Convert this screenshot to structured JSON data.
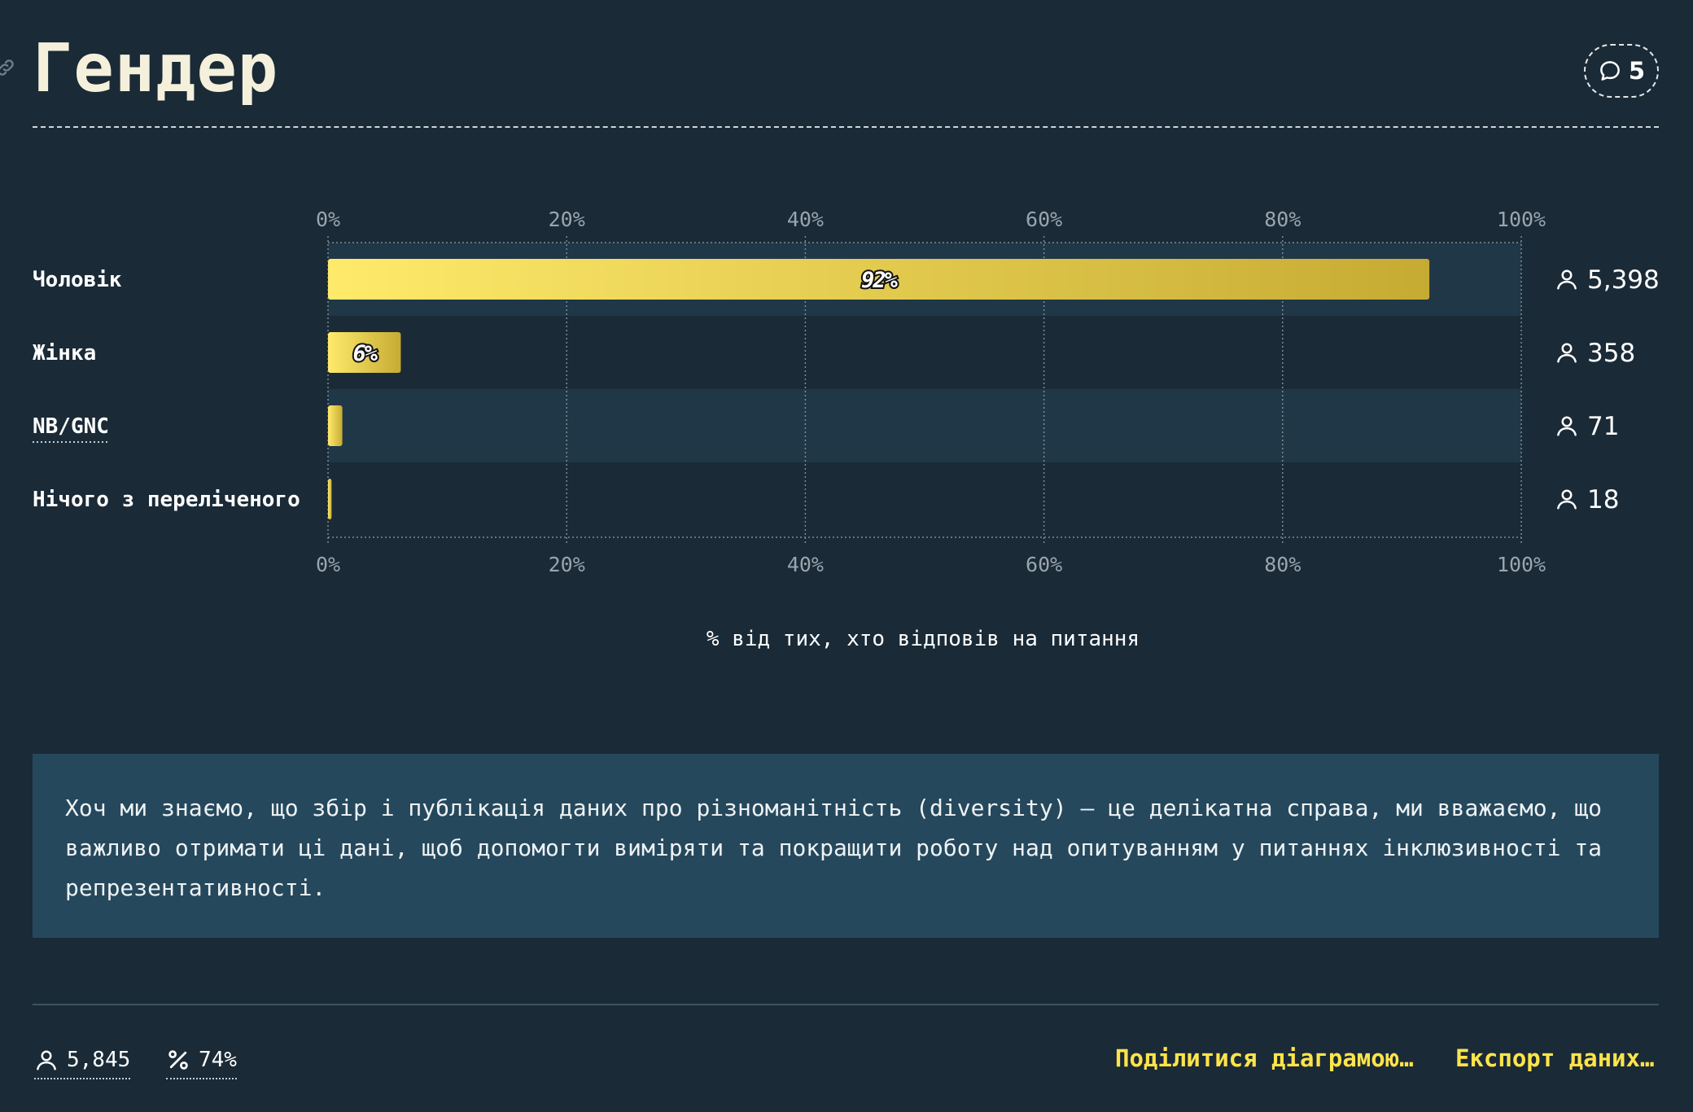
{
  "page": {
    "title": "Гендер",
    "comment_count": "5",
    "link_icon": "link-icon",
    "comment_icon": "speech-bubble-icon"
  },
  "chart_data": {
    "type": "bar",
    "orientation": "horizontal",
    "categories": [
      "Чоловік",
      "Жінка",
      "NB/GNC",
      "Нічого з переліченого"
    ],
    "values": [
      92.3,
      6.1,
      1.2,
      0.3
    ],
    "bar_labels": [
      "92%",
      "6%",
      "",
      ""
    ],
    "counts": [
      "5,398",
      "358",
      "71",
      "18"
    ],
    "count_icon": "person-icon",
    "x_ticks": [
      "0%",
      "20%",
      "40%",
      "60%",
      "80%",
      "100%"
    ],
    "xlim": [
      0,
      100
    ],
    "xlabel": "% від тих, хто відповів на питання",
    "grid": true,
    "bar_color_start": "#ffea6b",
    "bar_color_end": "#c6ab33",
    "stripe_color": "#1f3747"
  },
  "note": {
    "text": "Хоч ми знаємо, що збір і публікація даних про різноманітність (diversity) — це делікатна справа, ми вважаємо, що важливо отримати ці дані, щоб допомогти виміряти та покращити роботу над опитуванням у питаннях інклюзивності та репрезентативності."
  },
  "footer": {
    "respondents": "5,845",
    "respondents_icon": "person-icon",
    "percent": "74%",
    "percent_icon": "percent-icon",
    "share_label": "Поділитися діаграмою…",
    "export_label": "Експорт даних…",
    "accent_color": "#ffe44a"
  }
}
